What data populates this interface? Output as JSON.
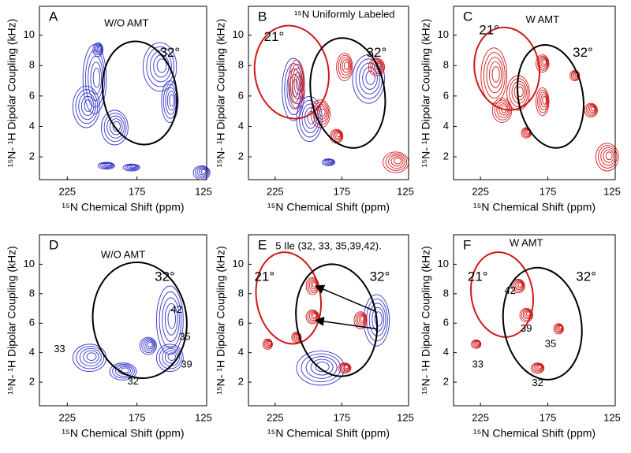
{
  "chart_data": [
    {
      "type": "contour",
      "panel": "A",
      "title": "W/O AMT",
      "x_label": "¹⁵N Chemical Shift (ppm)",
      "y_label": "¹⁵N- ¹H Dipolar Coupling (kHz)",
      "xlim": [
        245,
        125
      ],
      "ylim": [
        0.5,
        11.9
      ],
      "xticks": [
        225,
        175,
        125
      ],
      "yticks": [
        2,
        4,
        6,
        8,
        10
      ],
      "annotations": [
        "32°"
      ]
    },
    {
      "type": "contour",
      "panel": "B",
      "title": "¹⁵N Uniformly Labeled",
      "x_label": "¹⁵N Chemical Shift (ppm)",
      "y_label": "¹⁵N- ¹H Dipolar Coupling (kHz)",
      "xlim": [
        245,
        125
      ],
      "ylim": [
        0.5,
        11.9
      ],
      "xticks": [
        225,
        175,
        125
      ],
      "yticks": [
        2,
        4,
        6,
        8,
        10
      ],
      "annotations": [
        "21°",
        "32°"
      ]
    },
    {
      "type": "contour",
      "panel": "C",
      "title": "W AMT",
      "x_label": "¹⁵N Chemical Shift (ppm)",
      "y_label": "¹⁵N- ¹H Dipolar Coupling (kHz)",
      "xlim": [
        245,
        125
      ],
      "ylim": [
        0.5,
        11.9
      ],
      "xticks": [
        225,
        175,
        125
      ],
      "yticks": [
        2,
        4,
        6,
        8,
        10
      ],
      "annotations": [
        "21°",
        "32°"
      ]
    },
    {
      "type": "contour",
      "panel": "D",
      "title": "W/O AMT",
      "x_label": "¹⁵N Chemical Shift (ppm)",
      "y_label": "¹⁵N- ¹H Dipolar Coupling (kHz)",
      "xlim": [
        245,
        125
      ],
      "ylim": [
        0.4,
        12
      ],
      "xticks": [
        225,
        175,
        125
      ],
      "yticks": [
        2,
        4,
        6,
        8,
        10
      ],
      "annotations": [
        "32°",
        "42",
        "35",
        "39",
        "33",
        "32"
      ]
    },
    {
      "type": "contour",
      "panel": "E",
      "title": "5 Ile (32, 33, 35,39,42).",
      "x_label": "¹⁵N Chemical Shift (ppm)",
      "y_label": "¹⁵N- ¹H Dipolar Coupling (kHz)",
      "xlim": [
        245,
        125
      ],
      "ylim": [
        0.4,
        12
      ],
      "xticks": [
        225,
        175,
        125
      ],
      "yticks": [
        2,
        4,
        6,
        8,
        10
      ],
      "annotations": [
        "21°",
        "32°"
      ]
    },
    {
      "type": "contour",
      "panel": "F",
      "title": "W AMT",
      "x_label": "¹⁵N Chemical Shift (ppm)",
      "y_label": "¹⁵N- ¹H Dipolar Coupling (kHz)",
      "xlim": [
        245,
        125
      ],
      "ylim": [
        0.4,
        12
      ],
      "xticks": [
        225,
        175,
        125
      ],
      "yticks": [
        2,
        4,
        6,
        8,
        10
      ],
      "annotations": [
        "21°",
        "32°",
        "42",
        "39",
        "35",
        "33",
        "32"
      ]
    }
  ]
}
